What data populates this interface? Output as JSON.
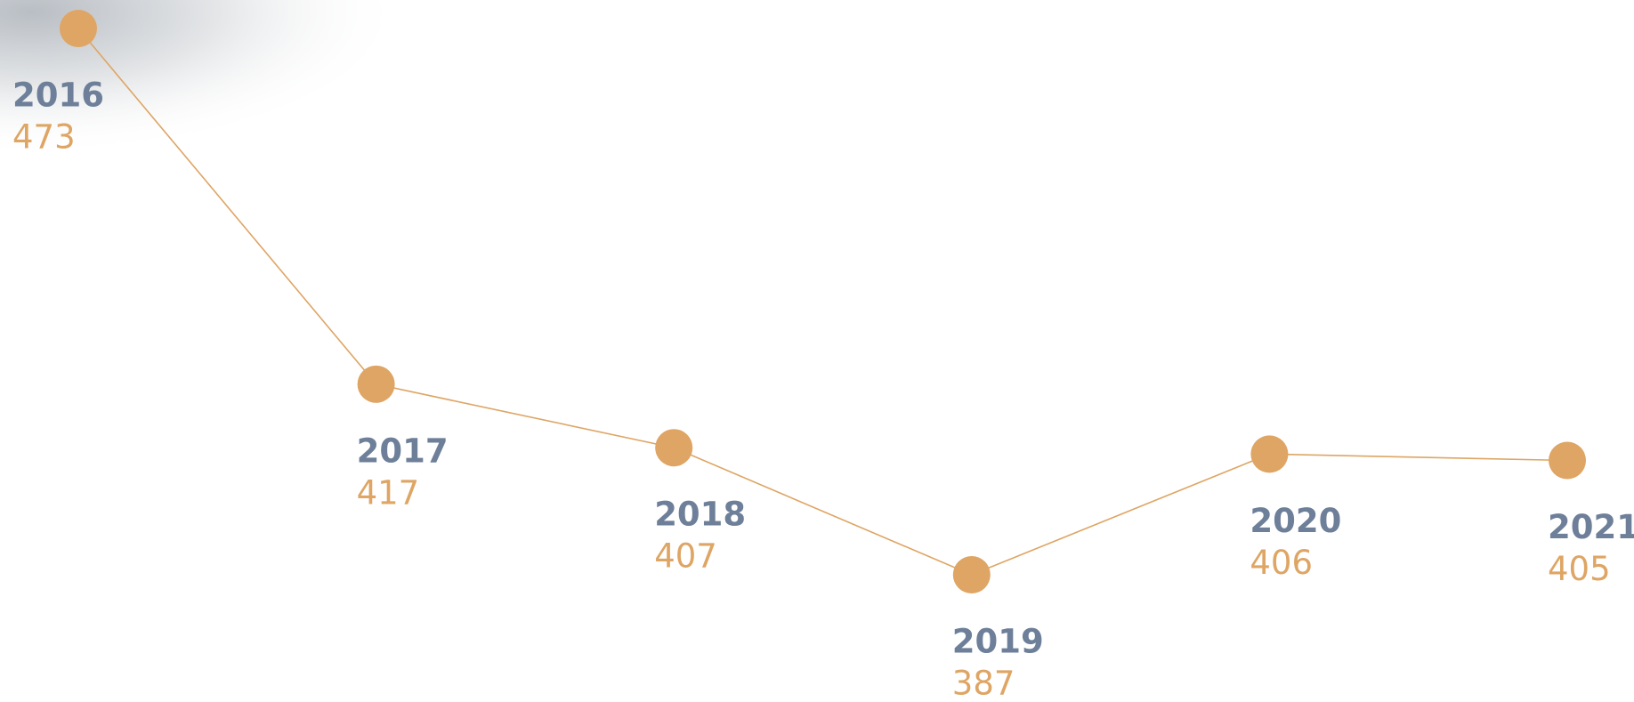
{
  "chart_data": {
    "type": "line",
    "categories": [
      "2016",
      "2017",
      "2018",
      "2019",
      "2020",
      "2021"
    ],
    "values": [
      473,
      417,
      407,
      387,
      406,
      405
    ],
    "color": "#dea564",
    "label_color": "#6e7f99"
  }
}
